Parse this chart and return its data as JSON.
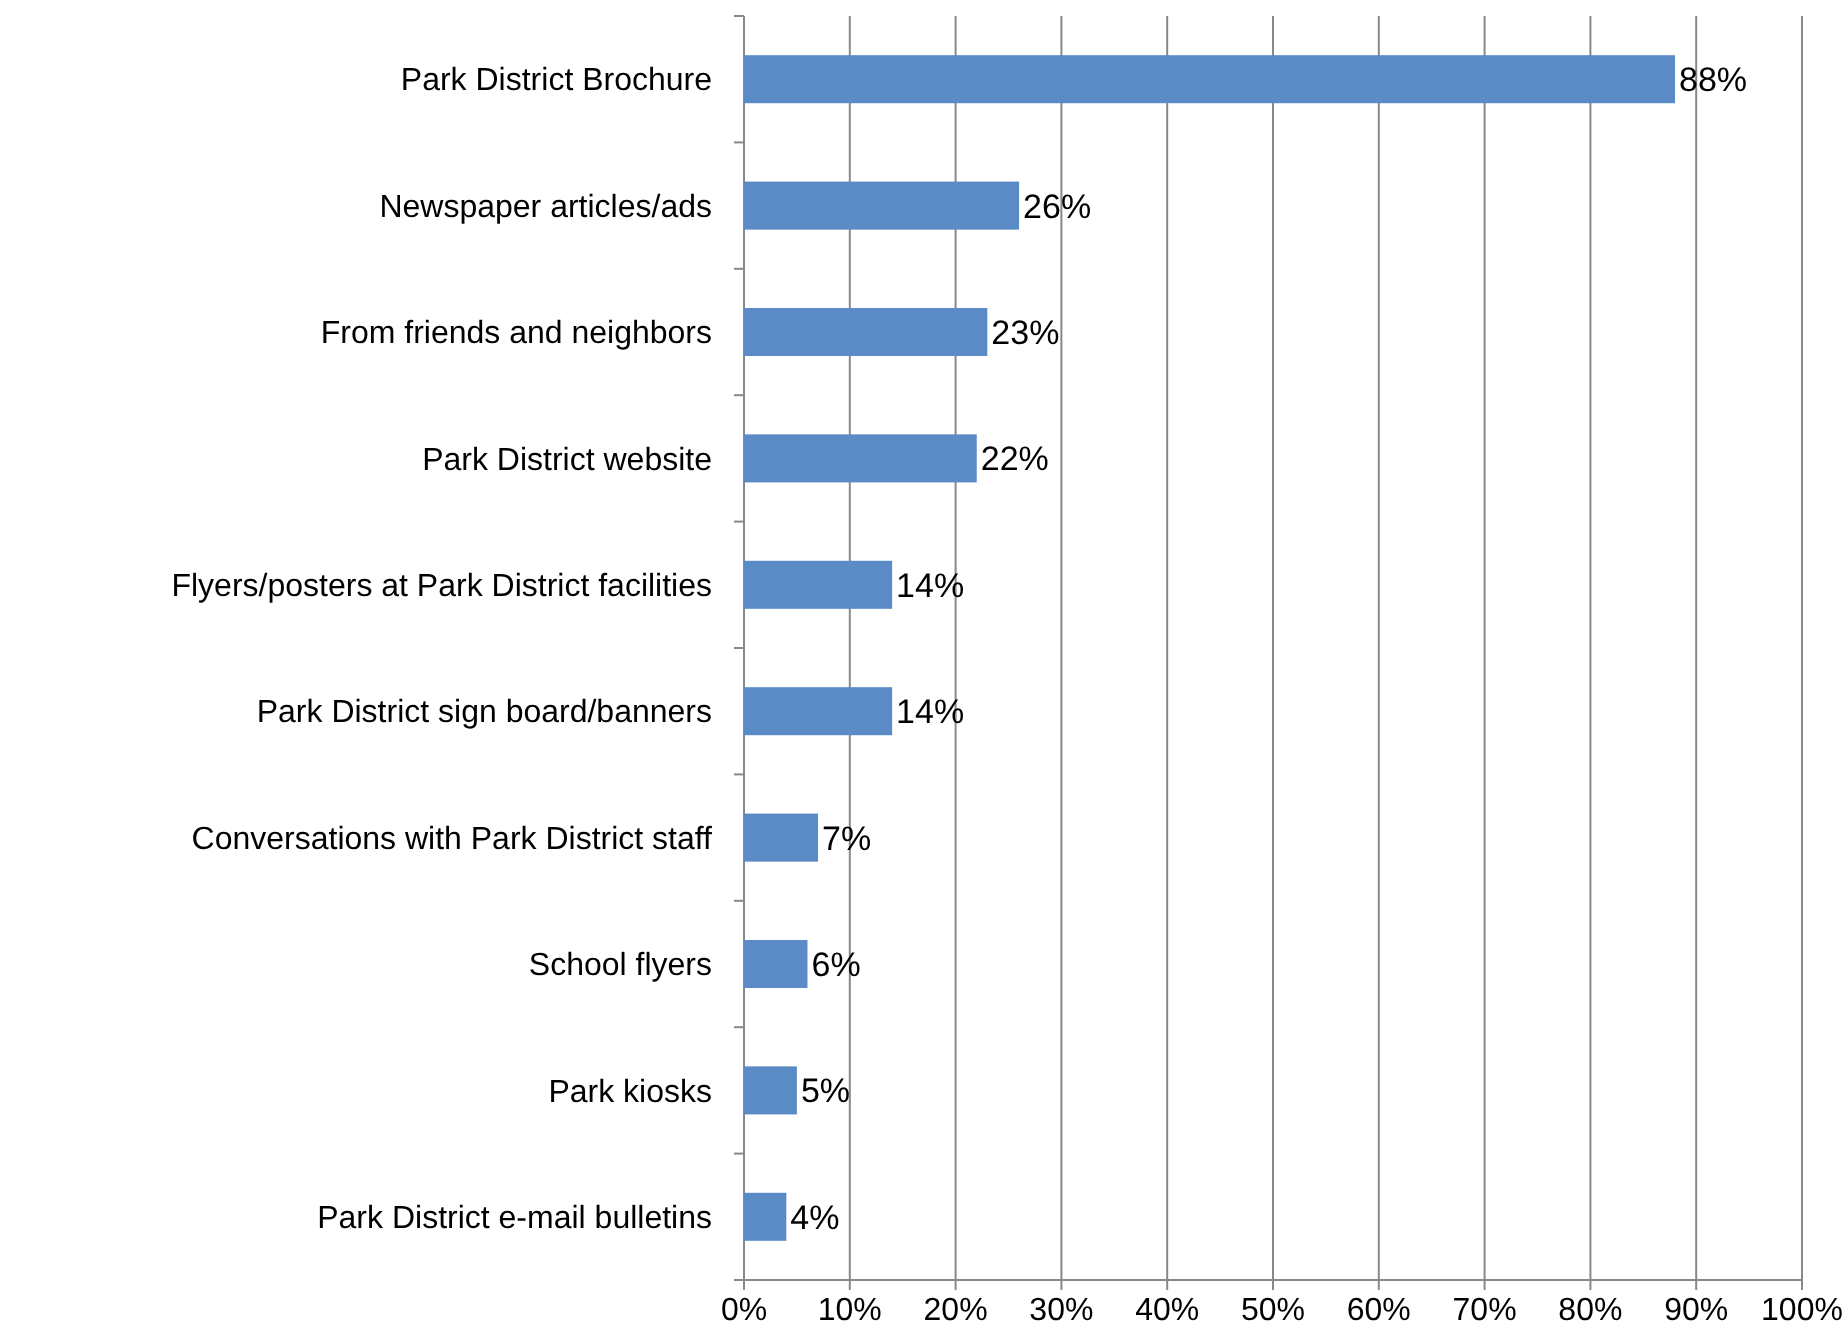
{
  "chart_data": {
    "type": "bar",
    "orientation": "horizontal",
    "categories": [
      "Park District Brochure",
      "Newspaper articles/ads",
      "From friends and neighbors",
      "Park District website",
      "Flyers/posters at Park District facilities",
      "Park District sign board/banners",
      "Conversations with Park District staff",
      "School flyers",
      "Park kiosks",
      "Park District e-mail bulletins"
    ],
    "values": [
      88,
      26,
      23,
      22,
      14,
      14,
      7,
      6,
      5,
      4
    ],
    "value_labels": [
      "88%",
      "26%",
      "23%",
      "22%",
      "14%",
      "14%",
      "7%",
      "6%",
      "5%",
      "4%"
    ],
    "color": "#5b8bc6",
    "xlim": [
      0,
      100
    ],
    "xticks": [
      {
        "value": 0,
        "label": "0%"
      },
      {
        "value": 10,
        "label": "10%"
      },
      {
        "value": 20,
        "label": "20%"
      },
      {
        "value": 30,
        "label": "30%"
      },
      {
        "value": 40,
        "label": "40%"
      },
      {
        "value": 50,
        "label": "50%"
      },
      {
        "value": 60,
        "label": "60%"
      },
      {
        "value": 70,
        "label": "70%"
      },
      {
        "value": 80,
        "label": "80%"
      },
      {
        "value": 90,
        "label": "90%"
      },
      {
        "value": 100,
        "label": "100%"
      }
    ],
    "grid": "x"
  }
}
